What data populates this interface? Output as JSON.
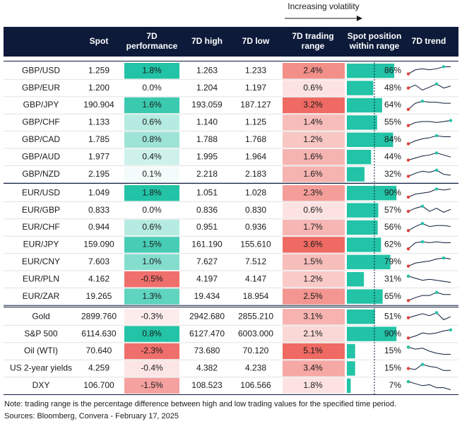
{
  "top_label": "Increasing volatility",
  "columns": [
    [
      "Spot"
    ],
    [
      "7D",
      "performance"
    ],
    [
      "7D high"
    ],
    [
      "7D low"
    ],
    [
      "7D trading",
      "range"
    ],
    [
      "Spot position",
      "within range"
    ],
    [
      "7D trend"
    ]
  ],
  "groups": [
    {
      "rows": [
        {
          "name": "GBP/USD",
          "spot": "1.259",
          "perf": {
            "value": 1.8,
            "label": "1.8%"
          },
          "high": "1.263",
          "low": "1.233",
          "range": {
            "value": 2.4,
            "label": "2.4%"
          },
          "position": {
            "value": 86,
            "label": "86%"
          },
          "trend": [
            2,
            6,
            7,
            6,
            7,
            9,
            9
          ]
        },
        {
          "name": "GBP/EUR",
          "spot": "1.200",
          "perf": {
            "value": 0.0,
            "label": "0.0%"
          },
          "high": "1.204",
          "low": "1.197",
          "range": {
            "value": 0.6,
            "label": "0.6%"
          },
          "position": {
            "value": 48,
            "label": "48%"
          },
          "trend": [
            5,
            8,
            3,
            6,
            9,
            5,
            7
          ]
        },
        {
          "name": "GBP/JPY",
          "spot": "190.904",
          "perf": {
            "value": 1.6,
            "label": "1.6%"
          },
          "high": "193.059",
          "low": "187.127",
          "range": {
            "value": 3.2,
            "label": "3.2%"
          },
          "position": {
            "value": 64,
            "label": "64%"
          },
          "trend": [
            1,
            7,
            9,
            8,
            8,
            7,
            7
          ]
        },
        {
          "name": "GBP/CHF",
          "spot": "1.133",
          "perf": {
            "value": 0.6,
            "label": "0.6%"
          },
          "high": "1.140",
          "low": "1.125",
          "range": {
            "value": 1.4,
            "label": "1.4%"
          },
          "position": {
            "value": 55,
            "label": "55%"
          },
          "trend": [
            2,
            5,
            6,
            6,
            5,
            6,
            7
          ]
        },
        {
          "name": "GBP/CAD",
          "spot": "1.785",
          "perf": {
            "value": 0.8,
            "label": "0.8%"
          },
          "high": "1.788",
          "low": "1.768",
          "range": {
            "value": 1.2,
            "label": "1.2%"
          },
          "position": {
            "value": 84,
            "label": "84%"
          },
          "trend": [
            1,
            4,
            6,
            7,
            9,
            8,
            8
          ]
        },
        {
          "name": "GBP/AUD",
          "spot": "1.977",
          "perf": {
            "value": 0.4,
            "label": "0.4%"
          },
          "high": "1.995",
          "low": "1.964",
          "range": {
            "value": 1.6,
            "label": "1.6%"
          },
          "position": {
            "value": 44,
            "label": "44%"
          },
          "trend": [
            2,
            4,
            6,
            7,
            9,
            7,
            5
          ]
        },
        {
          "name": "GBP/NZD",
          "spot": "2.195",
          "perf": {
            "value": 0.1,
            "label": "0.1%"
          },
          "high": "2.218",
          "low": "2.183",
          "range": {
            "value": 1.6,
            "label": "1.6%"
          },
          "position": {
            "value": 32,
            "label": "32%"
          },
          "trend": [
            3,
            6,
            8,
            7,
            9,
            5,
            4
          ]
        }
      ]
    },
    {
      "rows": [
        {
          "name": "EUR/USD",
          "spot": "1.049",
          "perf": {
            "value": 1.8,
            "label": "1.8%"
          },
          "high": "1.051",
          "low": "1.028",
          "range": {
            "value": 2.3,
            "label": "2.3%"
          },
          "position": {
            "value": 90,
            "label": "90%"
          },
          "trend": [
            1,
            4,
            5,
            6,
            9,
            8,
            9
          ]
        },
        {
          "name": "EUR/GBP",
          "spot": "0.833",
          "perf": {
            "value": 0.0,
            "label": "0.0%"
          },
          "high": "0.836",
          "low": "0.830",
          "range": {
            "value": 0.6,
            "label": "0.6%"
          },
          "position": {
            "value": 57,
            "label": "57%"
          },
          "trend": [
            4,
            7,
            9,
            4,
            7,
            3,
            6
          ]
        },
        {
          "name": "EUR/CHF",
          "spot": "0.944",
          "perf": {
            "value": 0.6,
            "label": "0.6%"
          },
          "high": "0.951",
          "low": "0.936",
          "range": {
            "value": 1.7,
            "label": "1.7%"
          },
          "position": {
            "value": 56,
            "label": "56%"
          },
          "trend": [
            2,
            6,
            9,
            6,
            7,
            7,
            6
          ]
        },
        {
          "name": "EUR/JPY",
          "spot": "159.090",
          "perf": {
            "value": 1.5,
            "label": "1.5%"
          },
          "high": "161.190",
          "low": "155.610",
          "range": {
            "value": 3.6,
            "label": "3.6%"
          },
          "position": {
            "value": 62,
            "label": "62%"
          },
          "trend": [
            1,
            7,
            8,
            7,
            8,
            7,
            7
          ]
        },
        {
          "name": "EUR/CNY",
          "spot": "7.603",
          "perf": {
            "value": 1.0,
            "label": "1.0%"
          },
          "high": "7.627",
          "low": "7.512",
          "range": {
            "value": 1.5,
            "label": "1.5%"
          },
          "position": {
            "value": 79,
            "label": "79%"
          },
          "trend": [
            1,
            4,
            5,
            6,
            8,
            9,
            8
          ]
        },
        {
          "name": "EUR/PLN",
          "spot": "4.162",
          "perf": {
            "value": -0.5,
            "label": "-0.5%"
          },
          "high": "4.197",
          "low": "4.147",
          "range": {
            "value": 1.2,
            "label": "1.2%"
          },
          "position": {
            "value": 31,
            "label": "31%"
          },
          "trend": [
            8,
            6,
            4,
            5,
            4,
            3,
            2
          ]
        },
        {
          "name": "EUR/ZAR",
          "spot": "19.265",
          "perf": {
            "value": 1.3,
            "label": "1.3%"
          },
          "high": "19.434",
          "low": "18.954",
          "range": {
            "value": 2.5,
            "label": "2.5%"
          },
          "position": {
            "value": 65,
            "label": "65%"
          },
          "trend": [
            1,
            4,
            6,
            6,
            9,
            7,
            7
          ]
        }
      ]
    },
    {
      "rows": [
        {
          "name": "Gold",
          "spot": "2899.760",
          "perf": {
            "value": -0.3,
            "label": "-0.3%"
          },
          "high": "2942.680",
          "low": "2855.210",
          "range": {
            "value": 3.1,
            "label": "3.1%"
          },
          "position": {
            "value": 51,
            "label": "51%"
          },
          "trend": [
            4,
            6,
            8,
            6,
            9,
            2,
            5
          ]
        },
        {
          "name": "S&P 500",
          "spot": "6114.630",
          "perf": {
            "value": 0.8,
            "label": "0.8%"
          },
          "high": "6127.470",
          "low": "6003.000",
          "range": {
            "value": 2.1,
            "label": "2.1%"
          },
          "position": {
            "value": 90,
            "label": "90%"
          },
          "trend": [
            1,
            3,
            6,
            5,
            6,
            8,
            9
          ]
        },
        {
          "name": "Oil (WTI)",
          "spot": "70.640",
          "perf": {
            "value": -2.3,
            "label": "-2.3%"
          },
          "high": "73.680",
          "low": "70.120",
          "range": {
            "value": 5.1,
            "label": "5.1%"
          },
          "position": {
            "value": 15,
            "label": "15%"
          },
          "trend": [
            9,
            7,
            8,
            5,
            3,
            2,
            2
          ]
        },
        {
          "name": "US 2-year yields",
          "spot": "4.259",
          "perf": {
            "value": -0.4,
            "label": "-0.4%"
          },
          "high": "4.382",
          "low": "4.238",
          "range": {
            "value": 3.4,
            "label": "3.4%"
          },
          "position": {
            "value": 15,
            "label": "15%"
          },
          "trend": [
            5,
            4,
            9,
            7,
            6,
            3,
            3
          ]
        },
        {
          "name": "DXY",
          "spot": "106.700",
          "perf": {
            "value": -1.5,
            "label": "-1.5%"
          },
          "high": "108.523",
          "low": "106.566",
          "range": {
            "value": 1.8,
            "label": "1.8%"
          },
          "position": {
            "value": 7,
            "label": "7%"
          },
          "trend": [
            9,
            7,
            5,
            6,
            3,
            3,
            1
          ]
        }
      ]
    }
  ],
  "notes": [
    "Note: trading range is the percentage difference between high and low trading values for the specified time period.",
    "Sources: Bloomberg, Convera - February 17, 2025"
  ]
}
